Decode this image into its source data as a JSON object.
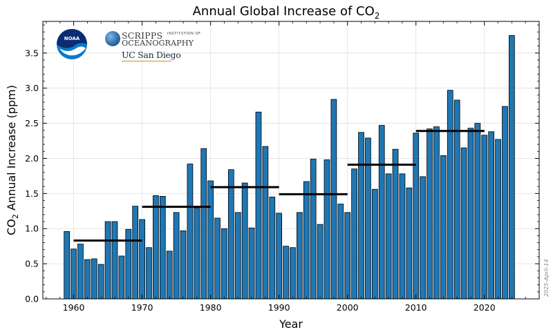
{
  "logos": {
    "noaa_text": "NOAA",
    "scripps_line1": "SCRIPPS",
    "scripps_inst": "INSTITUTION OF",
    "scripps_line2": "OCEANOGRAPHY",
    "ucsd": "UC San Diego"
  },
  "datestamp": "2025-April-14",
  "colors": {
    "bar": "#1f77b4",
    "bar_edge": "#000000",
    "decade_line": "#000000",
    "grid": "#e0e0e0"
  },
  "chart_data": {
    "type": "bar",
    "title": "Annual Global Increase of CO",
    "title_subscript": "2",
    "xlabel": "Year",
    "ylabel_prefix": "CO",
    "ylabel_subscript": "2",
    "ylabel_suffix": " Annual Increase (ppm)",
    "xlim": [
      1955.5,
      2028
    ],
    "ylim": [
      0,
      3.95
    ],
    "x_ticks": [
      1960,
      1970,
      1980,
      1990,
      2000,
      2010,
      2020
    ],
    "y_ticks": [
      0.0,
      0.5,
      1.0,
      1.5,
      2.0,
      2.5,
      3.0,
      3.5
    ],
    "y_tick_labels": [
      "0.0",
      "0.5",
      "1.0",
      "1.5",
      "2.0",
      "2.5",
      "3.0",
      "3.5"
    ],
    "grid": true,
    "years": [
      1959,
      1960,
      1961,
      1962,
      1963,
      1964,
      1965,
      1966,
      1967,
      1968,
      1969,
      1970,
      1971,
      1972,
      1973,
      1974,
      1975,
      1976,
      1977,
      1978,
      1979,
      1980,
      1981,
      1982,
      1983,
      1984,
      1985,
      1986,
      1987,
      1988,
      1989,
      1990,
      1991,
      1992,
      1993,
      1994,
      1995,
      1996,
      1997,
      1998,
      1999,
      2000,
      2001,
      2002,
      2003,
      2004,
      2005,
      2006,
      2007,
      2008,
      2009,
      2010,
      2011,
      2012,
      2013,
      2014,
      2015,
      2016,
      2017,
      2018,
      2019,
      2020,
      2021,
      2022,
      2023,
      2024
    ],
    "values": [
      0.96,
      0.71,
      0.78,
      0.56,
      0.57,
      0.49,
      1.1,
      1.1,
      0.61,
      0.99,
      1.32,
      1.13,
      0.73,
      1.47,
      1.46,
      0.68,
      1.23,
      0.97,
      1.92,
      1.29,
      2.14,
      1.68,
      1.15,
      1.0,
      1.84,
      1.23,
      1.65,
      1.01,
      2.66,
      2.17,
      1.45,
      1.22,
      0.75,
      0.73,
      1.23,
      1.67,
      1.99,
      1.06,
      1.98,
      2.84,
      1.35,
      1.23,
      1.85,
      2.37,
      2.29,
      1.56,
      2.47,
      1.78,
      2.13,
      1.78,
      1.58,
      2.36,
      1.74,
      2.42,
      2.45,
      2.04,
      2.97,
      2.83,
      2.15,
      2.43,
      2.5,
      2.33,
      2.38,
      2.27,
      2.74,
      3.75
    ],
    "decade_averages": [
      {
        "start": 1960,
        "end": 1970,
        "value": 0.83
      },
      {
        "start": 1970,
        "end": 1980,
        "value": 1.31
      },
      {
        "start": 1980,
        "end": 1990,
        "value": 1.59
      },
      {
        "start": 1990,
        "end": 2000,
        "value": 1.49
      },
      {
        "start": 2000,
        "end": 2010,
        "value": 1.91
      },
      {
        "start": 2010,
        "end": 2020,
        "value": 2.39
      }
    ]
  }
}
